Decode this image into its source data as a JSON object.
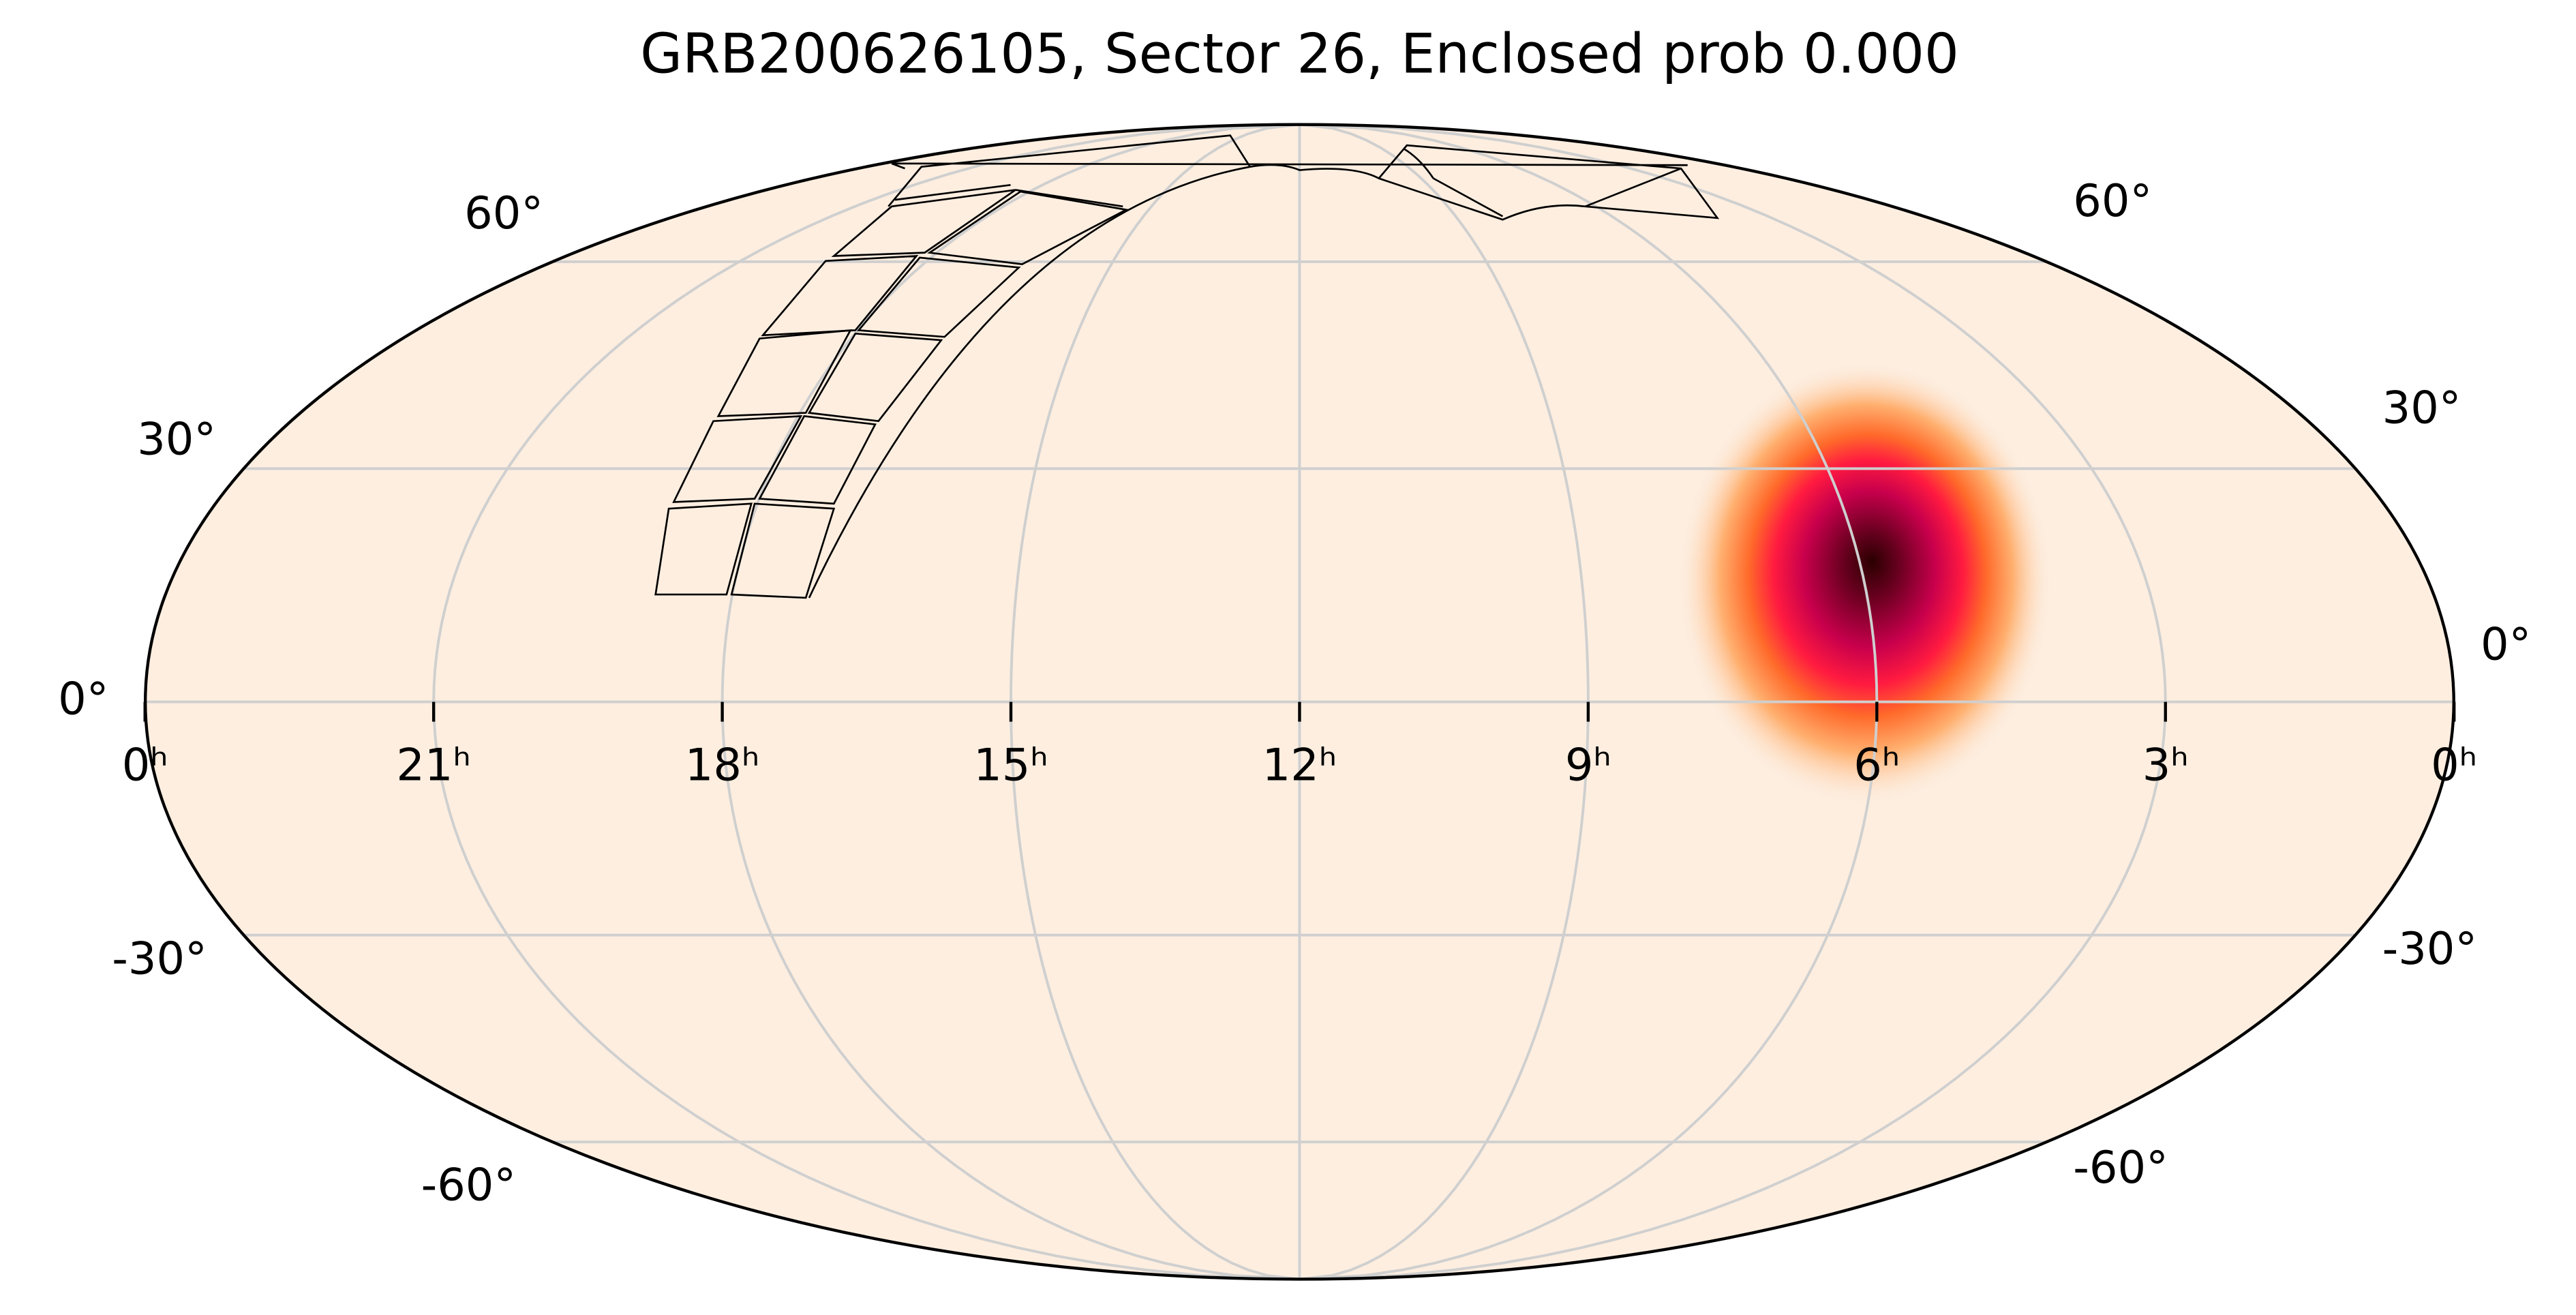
{
  "chart_data": {
    "type": "mollweide",
    "title": "GRB200626105, Sector 26, Enclosed prob 0.000",
    "background": "#fdeee0",
    "grid": true,
    "xlim": [
      24,
      0
    ],
    "xticks": [
      {
        "value": 24,
        "label": "0ʰ"
      },
      {
        "value": 21,
        "label": "21ʰ"
      },
      {
        "value": 18,
        "label": "18ʰ"
      },
      {
        "value": 15,
        "label": "15ʰ"
      },
      {
        "value": 12,
        "label": "12ʰ"
      },
      {
        "value": 9,
        "label": "9ʰ"
      },
      {
        "value": 6,
        "label": "6ʰ"
      },
      {
        "value": 3,
        "label": "3ʰ"
      },
      {
        "value": 0,
        "label": "0ʰ"
      }
    ],
    "ylim": [
      -90,
      90
    ],
    "yticks": [
      {
        "value": 60,
        "label": "60°"
      },
      {
        "value": 30,
        "label": "30°"
      },
      {
        "value": 0,
        "label": "0°"
      },
      {
        "value": -30,
        "label": "-30°"
      },
      {
        "value": -60,
        "label": "-60°"
      }
    ],
    "localization": {
      "ra": 6,
      "dec": 15,
      "radius": 30
    }
  }
}
